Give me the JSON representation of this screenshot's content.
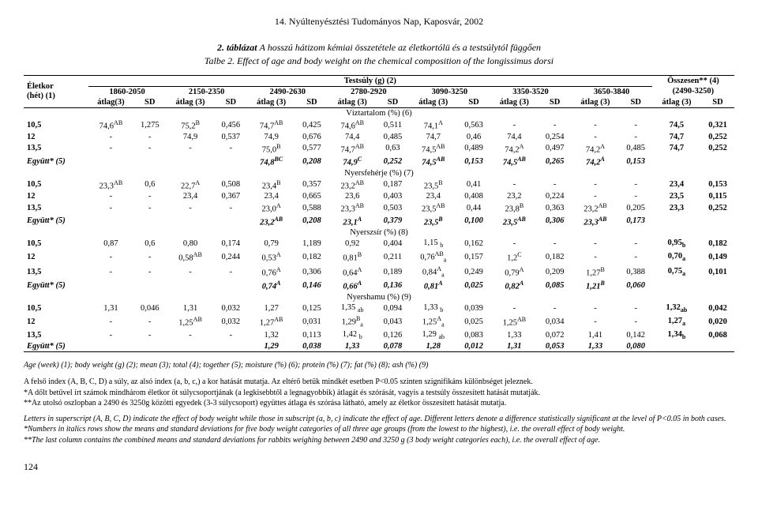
{
  "header": "14. Nyúltenyésztési Tudományos Nap, Kaposvár, 2002",
  "caption_line1_prefix": "2. táblázat",
  "caption_line1_rest": "  A hosszú hátizom kémiai összetétele az életkortólü és a testsúlytól függően",
  "caption_line2_link": "Talbe 2.",
  "caption_line2_rest": " Effect of age and body weight on the chemical composition of the longissimus dorsi",
  "row_header_left": "Életkor\n(hét) (1)",
  "supercol": "Testsúly (g) (2)",
  "osszesen": "Összesen** (4)\n(2490-3250)",
  "weight_groups": [
    "1860-2050",
    "2150-2350",
    "2490-2630",
    "2780-2920",
    "3090-3250",
    "3350-3520",
    "3650-3840"
  ],
  "subheads": [
    "átlag(3)",
    "SD",
    "átlag (3)",
    "SD",
    "átlag (3)",
    "SD",
    "átlag (3)",
    "SD",
    "átlag (3)",
    "SD",
    "átlag (3)",
    "SD",
    "átlag (3)",
    "SD",
    "átlag (3)",
    "SD"
  ],
  "sections": [
    {
      "title": "Víztartalom (%) (6)",
      "rows": [
        {
          "label": "10,5",
          "cells": [
            "74,6<sup>AB</sup>",
            "1,275",
            "75,2<sup>B</sup>",
            "0,456",
            "74,7<sup>AB</sup>",
            "0,425",
            "74,6<sup>AB</sup>",
            "0,511",
            "74,1<sup>A</sup>",
            "0,563",
            "-",
            "-",
            "-",
            "-",
            "74,5",
            "0,321"
          ]
        },
        {
          "label": "12",
          "cells": [
            "-",
            "-",
            "74,9",
            "0,537",
            "74,9",
            "0,676",
            "74,4",
            "0,485",
            "74,7",
            "0,46",
            "74,4",
            "0,254",
            "-",
            "-",
            "74,7",
            "0,252"
          ]
        },
        {
          "label": "13,5",
          "cells": [
            "-",
            "-",
            "-",
            "-",
            "75,0<sup>B</sup>",
            "0,577",
            "74,7<sup>AB</sup>",
            "0,63",
            "74,5<sup>AB</sup>",
            "0,489",
            "74,2<sup>A</sup>",
            "0,497",
            "74,2<sup>A</sup>",
            "0,485",
            "74,7",
            "0,252"
          ]
        },
        {
          "label": "Együtt* (5)",
          "italic": true,
          "cells": [
            "",
            "",
            "",
            "",
            "74,8<sup>BC</sup>",
            "0,208",
            "74,9<sup>C</sup>",
            "0,252",
            "74,5<sup>AB</sup>",
            "0,153",
            "74,5<sup>AB</sup>",
            "0,265",
            "74,2<sup>A</sup>",
            "0,153",
            "",
            ""
          ]
        }
      ]
    },
    {
      "title": "Nyersfehérje (%) (7)",
      "rows": [
        {
          "label": "10,5",
          "cells": [
            "23,3<sup>AB</sup>",
            "0,6",
            "22,7<sup>A</sup>",
            "0,508",
            "23,4<sup>B</sup>",
            "0,357",
            "23,2<sup>AB</sup>",
            "0,187",
            "23,5<sup>B</sup>",
            "0,41",
            "-",
            "-",
            "-",
            "-",
            "23,4",
            "0,153"
          ]
        },
        {
          "label": "12",
          "cells": [
            "-",
            "-",
            "23,4",
            "0,367",
            "23,4",
            "0,665",
            "23,6",
            "0,403",
            "23,4",
            "0,408",
            "23,2",
            "0,224",
            "-",
            "-",
            "23,5",
            "0,115"
          ]
        },
        {
          "label": "13,5",
          "cells": [
            "-",
            "-",
            "-",
            "-",
            "23,0<sup>A</sup>",
            "0,588",
            "23,3<sup>AB</sup>",
            "0,503",
            "23,5<sup>AB</sup>",
            "0,44",
            "23,8<sup>B</sup>",
            "0,363",
            "23,2<sup>AB</sup>",
            "0,205",
            "23,3",
            "0,252"
          ]
        },
        {
          "label": "Együtt* (5)",
          "italic": true,
          "cells": [
            "",
            "",
            "",
            "",
            "23,2<sup>AB</sup>",
            "0,208",
            "23,1<sup>A</sup>",
            "0,379",
            "23,5<sup>B</sup>",
            "0,100",
            "23,5<sup>AB</sup>",
            "0,306",
            "23,3<sup>AB</sup>",
            "0,173",
            "",
            ""
          ]
        }
      ]
    },
    {
      "title": "Nyerszsír (%) (8)",
      "rows": [
        {
          "label": "10,5",
          "cells": [
            "0,87",
            "0,6",
            "0,80",
            "0,174",
            "0,79",
            "1,189",
            "0,92",
            "0,404",
            "1,15 <sub>b</sub>",
            "0,162",
            "-",
            "-",
            "-",
            "-",
            "0,95<sub>b</sub>",
            "0,182"
          ]
        },
        {
          "label": "12",
          "cells": [
            "-",
            "-",
            "0,58<sup>AB</sup>",
            "0,244",
            "0,53<sup>A</sup>",
            "0,182",
            "0,81<sup>B</sup>",
            "0,211",
            "0,76<sup>AB</sup><sub>a</sub>",
            "0,157",
            "1,2<sup>C</sup>",
            "0,182",
            "-",
            "-",
            "0,70<sub>a</sub>",
            "0,149"
          ]
        },
        {
          "label": "13,5",
          "cells": [
            "-",
            "-",
            "-",
            "-",
            "0,76<sup>A</sup>",
            "0,306",
            "0,64<sup>A</sup>",
            "0,189",
            "0,84<sup>A</sup><sub>a</sub>",
            "0,249",
            "0,79<sup>A</sup>",
            "0,209",
            "1,27<sup>B</sup>",
            "0,388",
            "0,75<sub>a</sub>",
            "0,101"
          ]
        },
        {
          "label": "Együtt* (5)",
          "italic": true,
          "cells": [
            "",
            "",
            "",
            "",
            "0,74<sup>A</sup>",
            "0,146",
            "0,66<sup>A</sup>",
            "0,136",
            "0,81<sup>A</sup>",
            "0,025",
            "0,82<sup>A</sup>",
            "0,085",
            "1,21<sup>B</sup>",
            "0,060",
            "",
            ""
          ]
        }
      ]
    },
    {
      "title": "Nyershamu (%) (9)",
      "rows": [
        {
          "label": "10,5",
          "cells": [
            "1,31",
            "0,046",
            "1,31",
            "0,032",
            "1,27",
            "0,125",
            "1,35 <sub>ab</sub>",
            "0,094",
            "1,33 <sub>b</sub>",
            "0,039",
            "-",
            "-",
            "-",
            "-",
            "1,32<sub>ab</sub>",
            "0,042"
          ]
        },
        {
          "label": "12",
          "cells": [
            "-",
            "-",
            "1,25<sup>AB</sup>",
            "0,032",
            "1,27<sup>AB</sup>",
            "0,031",
            "1,29<sup>B</sup><sub>a</sub>",
            "0,043",
            "1,25<sup>A</sup><sub>a</sub>",
            "0,025",
            "1,25<sup>AB</sup>",
            "0,034",
            "-",
            "-",
            "1,27<sub>a</sub>",
            "0,020"
          ]
        },
        {
          "label": "13,5",
          "cells": [
            "-",
            "-",
            "-",
            "-",
            "1,32",
            "0,113",
            "1,42 <sub>b</sub>",
            "0,126",
            "1,29 <sub>ab</sub>",
            "0,083",
            "1,33",
            "0,072",
            "1,41",
            "0,142",
            "1,34<sub>b</sub>",
            "0,068"
          ]
        },
        {
          "label": "Együtt* (5)",
          "italic": true,
          "cells": [
            "",
            "",
            "",
            "",
            "1,29",
            "0,038",
            "1,33",
            "0,078",
            "1,28",
            "0,012",
            "1,31",
            "0,053",
            "1,33",
            "0,080",
            "",
            ""
          ]
        }
      ]
    }
  ],
  "footnote_en": "Age (week) (1); body weight (g) (2); mean (3); total (4); together (5); moisture (%) (6); protein (%) (7); fat (%) (8); ash (%) (9)",
  "notes_hu_1": "A felső index (A, B, C, D) a súly, az alsó index (a, b, c,) a kor hatását mutatja. Az eltérő betűk mindkét esetben P<0.05 szinten szignifikáns különbséget jeleznek.",
  "notes_hu_2": "*A dőlt betűvel írt számok mindhárom életkor öt súlycsoportjának (a legkisebbtől a legnagyobbik) átlagát és szórását, vagyis a testsúly összesített hatását mutatják.",
  "notes_hu_3": "**Az utolsó oszlopban a 2490 és 3250g közötti egyedek (3-3 súlycsoport) együttes átlaga és szórása látható, amely az életkor összesített hatását mutatja.",
  "notes_en_1": "Letters in superscript (A, B, C, D) indicate the effect of body weight while those in subscript (a, b, c) indicate the effect of age. Different letters denote a difference statistically significant at the level of P<0.05 in both cases.",
  "notes_en_2": "*Numbers in italics rows show the means and standard deviations for five body weight categories of all three age groups (from the lowest to the highest), i.e. the overall effect of body weight.",
  "notes_en_3": "**The last column contains the combined means and standard deviations for rabbits weighing between 2490 and 3250 g (3 body weight categories each), i.e. the overall effect of age.",
  "page_number": "124"
}
